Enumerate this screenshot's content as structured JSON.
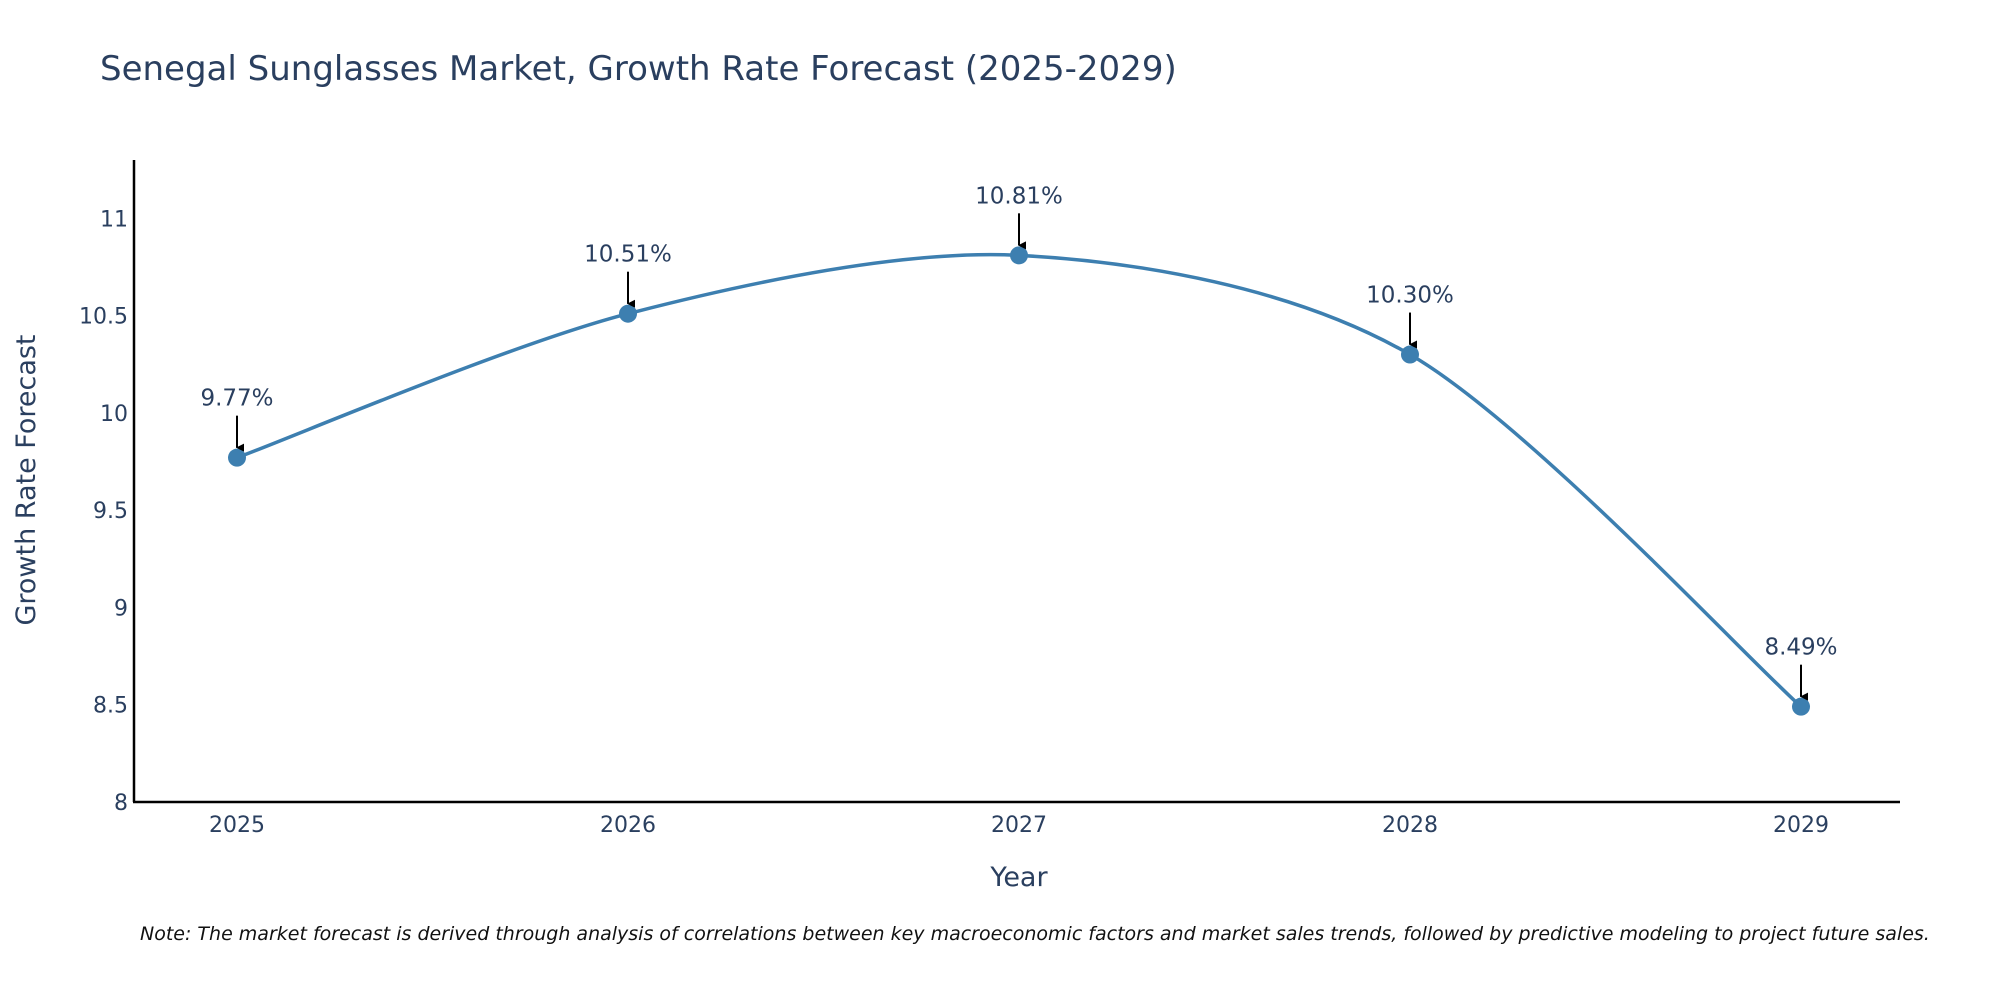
{
  "chart_data": {
    "type": "line",
    "title": "Senegal Sunglasses Market, Growth Rate Forecast (2025-2029)",
    "xlabel": "Year",
    "ylabel": "Growth Rate Forecast",
    "categories": [
      "2025",
      "2026",
      "2027",
      "2028",
      "2029"
    ],
    "values": [
      9.77,
      10.51,
      10.81,
      10.3,
      8.49
    ],
    "data_labels": [
      "9.77%",
      "10.51%",
      "10.81%",
      "10.30%",
      "8.49%"
    ],
    "y_ticks": [
      "8",
      "8.5",
      "9",
      "9.5",
      "10",
      "10.5",
      "11"
    ],
    "ylim": [
      8,
      11.3
    ],
    "grid": false,
    "line_color": "#3d7fb0",
    "line_shape": "spline",
    "markers": true,
    "annotation_arrows": true
  },
  "note": "Note: The market forecast is derived through analysis of correlations between key macroeconomic factors and market sales trends, followed by predictive modeling to project future sales."
}
